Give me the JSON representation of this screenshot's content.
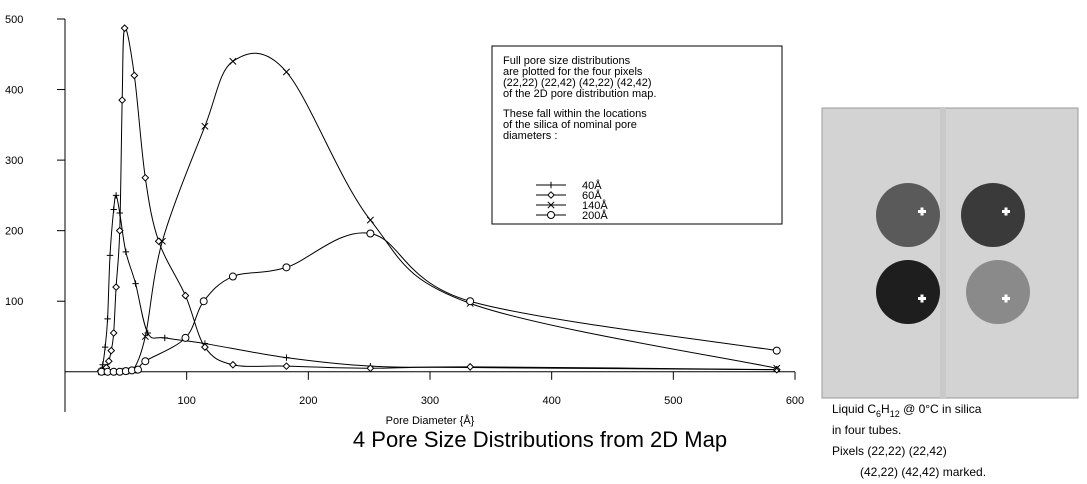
{
  "chart_data": {
    "type": "line",
    "title": "4 Pore Size Distributions from 2D Map",
    "x_label": "Pore Diameter {Å}",
    "xlim": [
      0,
      600
    ],
    "xticks": [
      100,
      200,
      300,
      400,
      500,
      600
    ],
    "ylim": [
      -57,
      500
    ],
    "yticks": [
      100,
      200,
      300,
      400,
      500
    ],
    "color": "#000000",
    "annotation": [
      "Full pore size distributions",
      "are plotted for the four pixels",
      "(22,22) (22,42) (42,22) (42,42)",
      "of the 2D pore distribution map.",
      "These fall within the locations",
      "of the silica of nominal pore",
      "diameters :"
    ],
    "series": [
      {
        "name": "40Å",
        "marker": "plus",
        "x": [
          29,
          31,
          33,
          35,
          37,
          40,
          42,
          45,
          50,
          58,
          68,
          82,
          115,
          182,
          251,
          333,
          585
        ],
        "values": [
          2,
          10,
          35,
          75,
          165,
          230,
          250,
          225,
          170,
          125,
          55,
          48,
          40,
          20,
          8,
          6,
          3
        ]
      },
      {
        "name": "60Å",
        "marker": "diamond",
        "x": [
          31,
          34,
          36,
          38,
          40,
          42,
          45,
          47,
          49,
          57,
          66,
          77,
          99,
          115,
          138,
          182,
          251,
          333,
          585
        ],
        "values": [
          1,
          6,
          15,
          30,
          55,
          120,
          200,
          385,
          487,
          420,
          275,
          185,
          108,
          35,
          10,
          8,
          5,
          7,
          3
        ]
      },
      {
        "name": "140Å",
        "marker": "cross",
        "x": [
          30,
          38,
          44,
          50,
          56,
          66,
          80,
          115,
          138,
          182,
          251,
          333,
          585
        ],
        "values": [
          0,
          0,
          0,
          1,
          2,
          50,
          185,
          348,
          440,
          425,
          215,
          97,
          5
        ]
      },
      {
        "name": "200Å",
        "marker": "circle",
        "x": [
          30,
          35,
          40,
          45,
          50,
          55,
          60,
          66,
          99,
          114,
          138,
          182,
          251,
          333,
          585
        ],
        "values": [
          0,
          0,
          0,
          0,
          1,
          2,
          3,
          15,
          48,
          100,
          135,
          148,
          196,
          100,
          30
        ]
      }
    ]
  },
  "caption": {
    "line1": {
      "a": "Liquid C",
      "b": "6",
      "c": "H",
      "d": "12",
      "e": " @ 0°C in silica"
    },
    "line2": "in four tubes.",
    "line3": "Pixels (22,22) (22,42)",
    "line4": "(42,22) (42,42) marked."
  }
}
